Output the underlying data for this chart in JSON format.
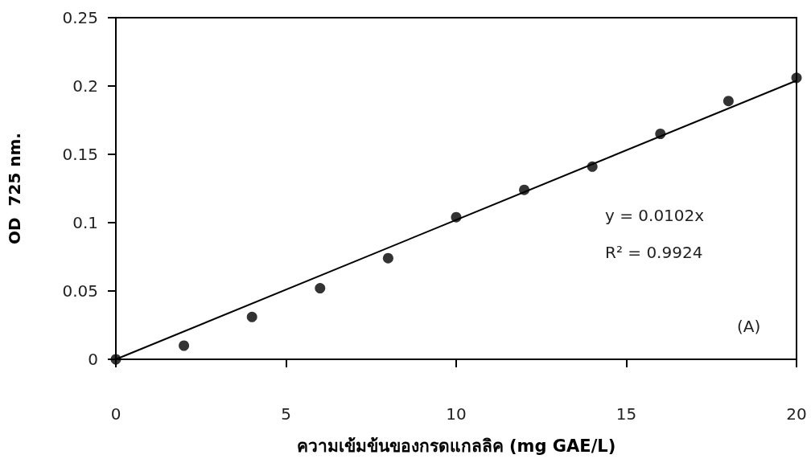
{
  "chart_data": {
    "type": "scatter",
    "xlabel": "ความเข้มข้นของกรดแกลลิค (mg GAE/L)",
    "ylabel": "OD  725 nm.",
    "annotations": [
      "y = 0.0102x",
      "R² = 0.9924",
      "(A)"
    ],
    "series": [
      {
        "color": "#000000",
        "marker": "circle",
        "x": [
          0,
          2,
          4,
          6,
          8,
          10,
          12,
          14,
          16,
          18,
          20
        ],
        "values": [
          0,
          0.01,
          0.031,
          0.052,
          0.074,
          0.104,
          0.124,
          0.141,
          0.165,
          0.189,
          0.206
        ]
      },
      {
        "type": "line",
        "color": "#000000",
        "marker": "none",
        "line_style": "solid",
        "x": [
          0,
          20
        ],
        "values": [
          0,
          0.204
        ]
      }
    ],
    "xlim": [
      0,
      20
    ],
    "xticks": [
      0,
      5,
      10,
      15,
      20
    ],
    "ylim": [
      0,
      0.25
    ],
    "yticks": [
      0,
      0.05,
      0.1,
      0.15,
      0.2,
      0.25
    ],
    "grid": false
  }
}
